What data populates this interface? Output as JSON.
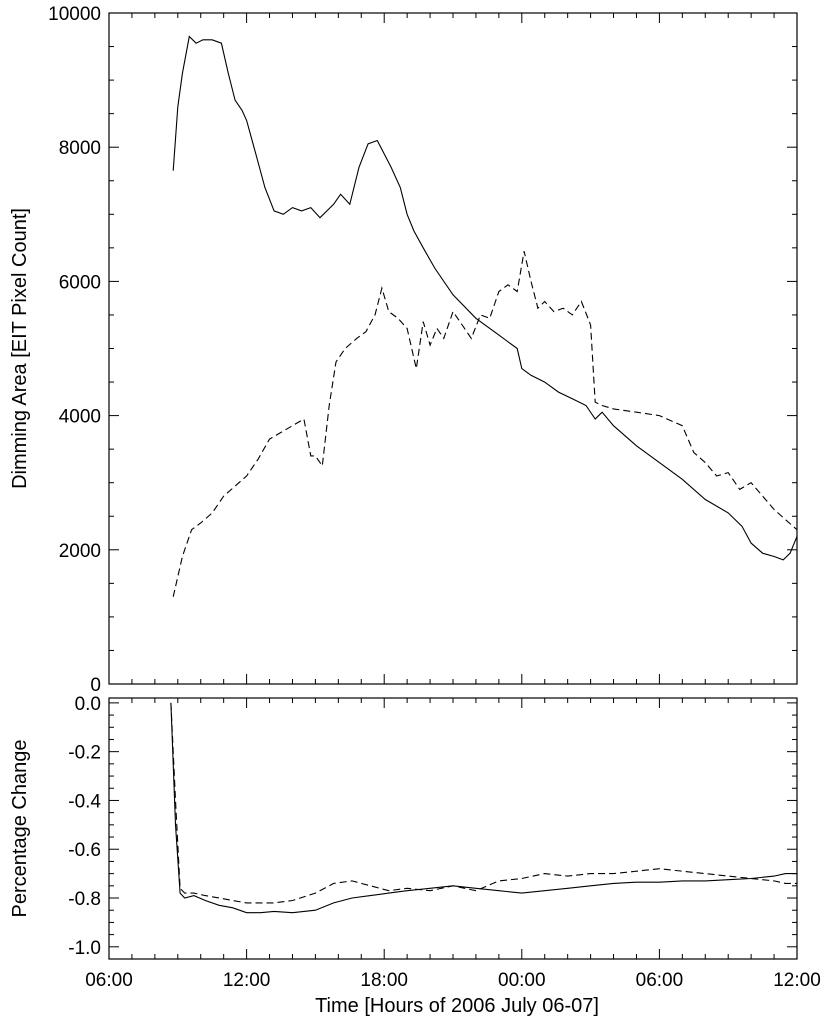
{
  "chart_data": [
    {
      "type": "line",
      "title": "",
      "xlabel": "",
      "ylabel": "Dimming Area [EIT Pixel Count]",
      "xlim": [
        6,
        36
      ],
      "ylim": [
        0,
        10000
      ],
      "x_tick_values": [
        6,
        12,
        18,
        24,
        30,
        36
      ],
      "y_tick_values": [
        0,
        2000,
        4000,
        6000,
        8000,
        10000
      ],
      "y_tick_labels": [
        "0",
        "2000",
        "4000",
        "6000",
        "8000",
        "10000"
      ],
      "grid": false,
      "legend": "none",
      "series": [
        {
          "style": "solid",
          "x": [
            8.8,
            9.0,
            9.2,
            9.5,
            9.8,
            10.1,
            10.5,
            10.9,
            11.2,
            11.5,
            11.8,
            12.0,
            12.4,
            12.8,
            13.2,
            13.6,
            14.0,
            14.4,
            14.8,
            15.2,
            15.5,
            15.8,
            16.1,
            16.5,
            16.9,
            17.3,
            17.7,
            18.0,
            18.3,
            18.7,
            19.0,
            19.3,
            19.7,
            20.2,
            21.0,
            22.0,
            23.0,
            23.8,
            24.0,
            24.4,
            25.0,
            25.6,
            26.2,
            26.8,
            27.2,
            27.5,
            28.0,
            29.0,
            30.0,
            31.0,
            32.0,
            33.0,
            33.6,
            34.0,
            34.5,
            35.0,
            35.4,
            35.7,
            36.0
          ],
          "y": [
            7650,
            8600,
            9100,
            9650,
            9550,
            9600,
            9600,
            9550,
            9100,
            8700,
            8550,
            8400,
            7900,
            7400,
            7050,
            7000,
            7100,
            7050,
            7100,
            6950,
            7050,
            7150,
            7300,
            7150,
            7700,
            8050,
            8100,
            7900,
            7700,
            7400,
            7000,
            6750,
            6500,
            6200,
            5800,
            5450,
            5200,
            5000,
            4700,
            4600,
            4500,
            4350,
            4250,
            4150,
            3950,
            4050,
            3850,
            3550,
            3300,
            3050,
            2750,
            2550,
            2350,
            2100,
            1950,
            1900,
            1850,
            1950,
            2200
          ]
        },
        {
          "style": "dashed",
          "x": [
            8.8,
            9.2,
            9.6,
            10.0,
            10.5,
            11.0,
            11.5,
            12.0,
            12.5,
            13.0,
            13.5,
            14.0,
            14.5,
            14.8,
            15.0,
            15.3,
            15.6,
            15.9,
            16.3,
            16.8,
            17.2,
            17.6,
            17.9,
            18.2,
            18.6,
            19.0,
            19.4,
            19.7,
            20.0,
            20.3,
            20.6,
            21.0,
            21.4,
            21.8,
            22.2,
            22.6,
            23.0,
            23.4,
            23.8,
            24.1,
            24.4,
            24.7,
            25.0,
            25.4,
            25.8,
            26.2,
            26.6,
            27.0,
            27.2,
            27.5,
            28.0,
            29.0,
            30.0,
            31.0,
            31.5,
            32.0,
            32.5,
            33.0,
            33.5,
            34.0,
            34.5,
            35.0,
            35.5,
            36.0
          ],
          "y": [
            1300,
            1900,
            2300,
            2400,
            2550,
            2800,
            2950,
            3100,
            3350,
            3650,
            3750,
            3850,
            3950,
            3400,
            3400,
            3250,
            4150,
            4800,
            5000,
            5150,
            5250,
            5500,
            5900,
            5550,
            5450,
            5300,
            4700,
            5400,
            5050,
            5300,
            5150,
            5550,
            5350,
            5150,
            5500,
            5450,
            5850,
            5950,
            5850,
            6450,
            6000,
            5600,
            5700,
            5550,
            5600,
            5500,
            5700,
            5350,
            4200,
            4150,
            4100,
            4050,
            4000,
            3850,
            3450,
            3300,
            3100,
            3150,
            2900,
            3000,
            2800,
            2600,
            2450,
            2300
          ]
        }
      ]
    },
    {
      "type": "line",
      "title": "",
      "xlabel": "Time [Hours of 2006 July 06-07]",
      "ylabel": "Percentage Change",
      "xlim": [
        6,
        36
      ],
      "ylim": [
        -1.05,
        0.02
      ],
      "x_tick_values": [
        6,
        12,
        18,
        24,
        30,
        36
      ],
      "x_tick_labels": [
        "06:00",
        "12:00",
        "18:00",
        "00:00",
        "06:00",
        "12:00"
      ],
      "y_tick_values": [
        0.0,
        -0.2,
        -0.4,
        -0.6,
        -0.8,
        -1.0
      ],
      "y_tick_labels": [
        "0.0",
        "-0.2",
        "-0.4",
        "-0.6",
        "-0.8",
        "-1.0"
      ],
      "grid": false,
      "legend": "none",
      "series": [
        {
          "style": "solid",
          "x": [
            8.7,
            8.9,
            9.1,
            9.3,
            9.7,
            10.2,
            10.8,
            11.4,
            12.0,
            12.6,
            13.2,
            14.0,
            15.0,
            15.8,
            16.6,
            17.4,
            18.2,
            19.0,
            20.0,
            21.0,
            22.0,
            23.0,
            24.0,
            25.0,
            26.0,
            27.0,
            28.0,
            29.0,
            30.0,
            31.0,
            32.0,
            33.0,
            34.0,
            35.0,
            35.5,
            36.0
          ],
          "y": [
            0.0,
            -0.5,
            -0.78,
            -0.8,
            -0.79,
            -0.81,
            -0.83,
            -0.84,
            -0.86,
            -0.86,
            -0.855,
            -0.86,
            -0.85,
            -0.82,
            -0.8,
            -0.79,
            -0.78,
            -0.77,
            -0.76,
            -0.75,
            -0.76,
            -0.77,
            -0.78,
            -0.77,
            -0.76,
            -0.75,
            -0.74,
            -0.735,
            -0.735,
            -0.73,
            -0.73,
            -0.725,
            -0.72,
            -0.71,
            -0.7,
            -0.7
          ]
        },
        {
          "style": "dashed",
          "x": [
            8.7,
            8.9,
            9.1,
            9.3,
            9.7,
            10.2,
            10.8,
            11.4,
            12.0,
            12.6,
            13.2,
            14.0,
            15.0,
            15.8,
            16.6,
            17.4,
            18.2,
            19.0,
            20.0,
            21.0,
            22.0,
            23.0,
            24.0,
            25.0,
            26.0,
            27.0,
            28.0,
            29.0,
            30.0,
            31.0,
            32.0,
            33.0,
            34.0,
            35.0,
            35.5,
            36.0
          ],
          "y": [
            0.0,
            -0.4,
            -0.76,
            -0.78,
            -0.78,
            -0.79,
            -0.8,
            -0.81,
            -0.82,
            -0.82,
            -0.82,
            -0.81,
            -0.78,
            -0.74,
            -0.73,
            -0.75,
            -0.77,
            -0.76,
            -0.77,
            -0.75,
            -0.77,
            -0.73,
            -0.72,
            -0.7,
            -0.71,
            -0.7,
            -0.7,
            -0.69,
            -0.68,
            -0.69,
            -0.7,
            -0.71,
            -0.72,
            -0.73,
            -0.74,
            -0.74
          ]
        }
      ]
    }
  ]
}
